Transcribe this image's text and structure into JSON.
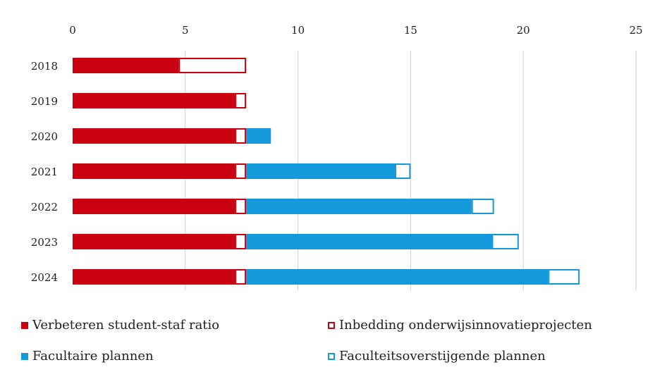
{
  "chart_data": {
    "type": "bar",
    "orientation": "horizontal",
    "stacked": true,
    "categories": [
      "2018",
      "2019",
      "2020",
      "2021",
      "2022",
      "2023",
      "2024"
    ],
    "series": [
      {
        "name": "Verbeteren student-staf ratio",
        "values": [
          4.7,
          7.2,
          7.2,
          7.2,
          7.2,
          7.2,
          7.2
        ],
        "color": "#c8000f",
        "style": "solid"
      },
      {
        "name": "Inbedding onderwijsinnovatieprojecten",
        "values": [
          3.0,
          0.5,
          0.5,
          0.5,
          0.5,
          0.5,
          0.5
        ],
        "color": "#c8000f",
        "style": "outline"
      },
      {
        "name": "Facultaire plannen",
        "values": [
          0.0,
          0.0,
          1.1,
          6.6,
          10.0,
          10.9,
          13.4
        ],
        "color": "#1499dc",
        "style": "solid"
      },
      {
        "name": "Faculteitsoverstijgende plannen",
        "values": [
          0.0,
          0.0,
          0.0,
          0.7,
          1.0,
          1.2,
          1.4
        ],
        "color": "#1499dc",
        "style": "outline"
      }
    ],
    "xlim": [
      0,
      25
    ],
    "xticks": [
      "0",
      "5",
      "10",
      "15",
      "20",
      "25"
    ],
    "grid": true,
    "x_axis_position": "top",
    "legend_position": "bottom"
  }
}
